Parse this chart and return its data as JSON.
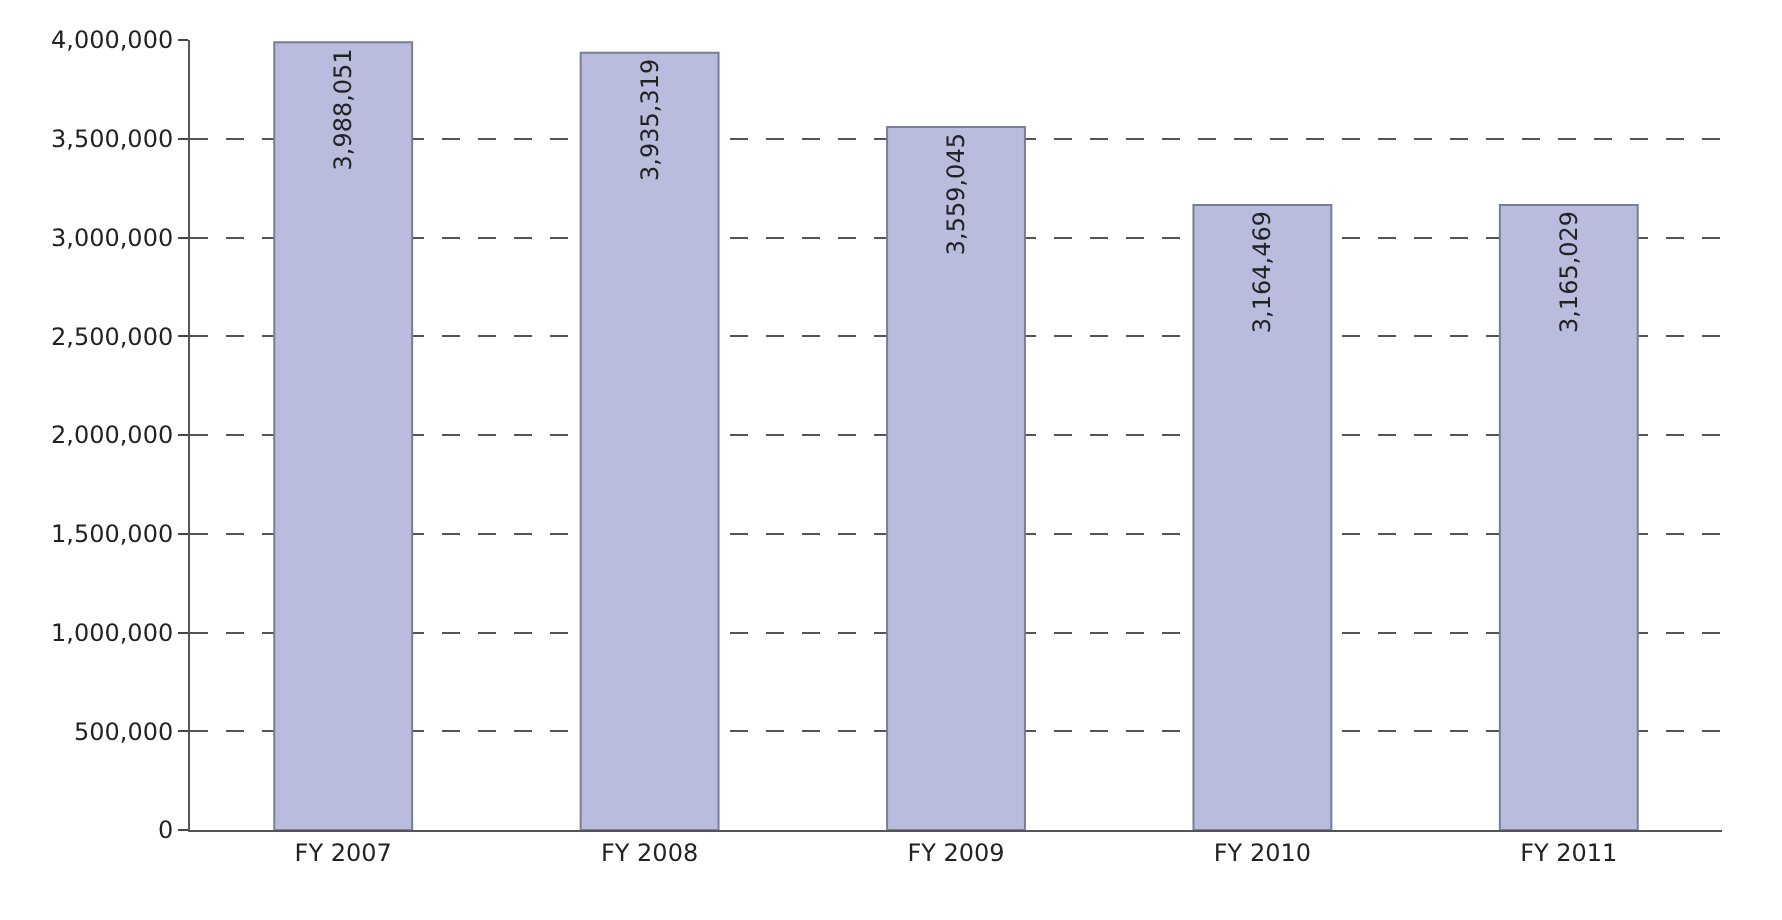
{
  "chart_data": {
    "type": "bar",
    "categories": [
      "FY 2007",
      "FY 2008",
      "FY 2009",
      "FY 2010",
      "FY 2011"
    ],
    "values": [
      3988051,
      3935319,
      3559045,
      3164469,
      3165029
    ],
    "color": "#b9bcdc",
    "ylim": [
      0,
      4000000
    ],
    "yticks": [
      {
        "value": 0,
        "label": "0"
      },
      {
        "value": 500000,
        "label": "500,000"
      },
      {
        "value": 1000000,
        "label": "1,000,000"
      },
      {
        "value": 1500000,
        "label": "1,500,000"
      },
      {
        "value": 2000000,
        "label": "2,000,000"
      },
      {
        "value": 2500000,
        "label": "2,500,000"
      },
      {
        "value": 3000000,
        "label": "3,000,000"
      },
      {
        "value": 3500000,
        "label": "3,500,000"
      },
      {
        "value": 4000000,
        "label": "4,000,000"
      }
    ],
    "value_labels": [
      "3,988,051",
      "3,935,319",
      "3,559,045",
      "3,164,469",
      "3,165,029"
    ],
    "grid": "y",
    "legend": false
  }
}
